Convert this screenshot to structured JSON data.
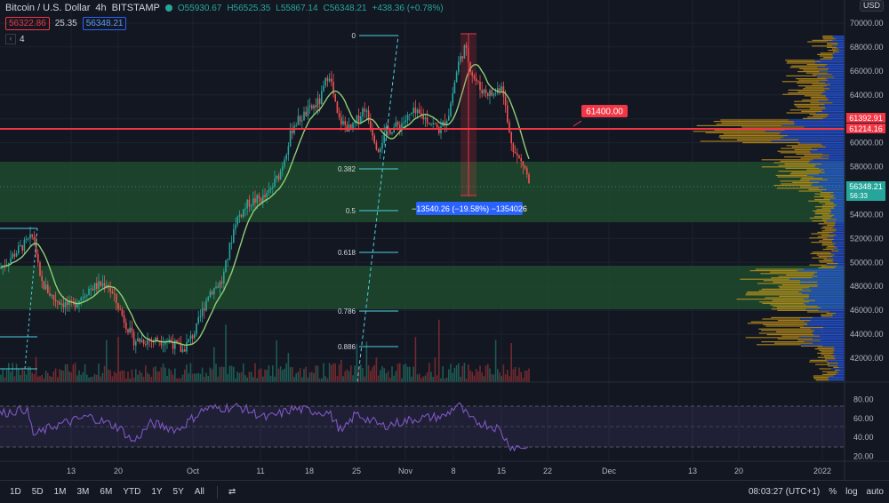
{
  "header": {
    "symbol": "Bitcoin / U.S. Dollar",
    "interval": "4h",
    "exchange": "BITSTAMP",
    "open": "O55930.67",
    "high": "H56525.35",
    "low": "L55867.14",
    "close": "C56348.21",
    "change": "+438.36 (+0.78%)"
  },
  "quote": {
    "bid": "56322.86",
    "spread": "25.35",
    "ask": "56348.21"
  },
  "indicators_collapsed": "4",
  "currency": "USD",
  "price_axis": {
    "labels": [
      "70000.00",
      "68000.00",
      "66000.00",
      "64000.00",
      "62000.00",
      "60000.00",
      "58000.00",
      "56000.00",
      "54000.00",
      "52000.00",
      "50000.00",
      "48000.00",
      "46000.00",
      "44000.00",
      "42000.00"
    ],
    "tag_61392": "61392.91",
    "tag_61214": "61214.16",
    "tag_last": "56348.21",
    "tag_countdown": "56:33"
  },
  "hline_label": "61400.00",
  "fib_levels": [
    "0",
    "0.382",
    "0.5",
    "0.618",
    "0.786",
    "0.886"
  ],
  "measure_label": "−13540.26 (−19.58%) −1354026",
  "rsi_axis": [
    "80.00",
    "60.00",
    "40.00",
    "20.00"
  ],
  "time_axis": [
    "13",
    "20",
    "Oct",
    "11",
    "18",
    "25",
    "Nov",
    "8",
    "15",
    "22",
    "Dec",
    "13",
    "20",
    "2022"
  ],
  "toolbar": {
    "timeframes": [
      "1D",
      "5D",
      "1M",
      "3M",
      "6M",
      "YTD",
      "1Y",
      "5Y",
      "All"
    ],
    "clock": "08:03:27 (UTC+1)",
    "percent": "%",
    "log": "log",
    "auto": "auto"
  },
  "colors": {
    "background": "#131722",
    "up": "#26a69a",
    "down": "#ef5350",
    "ma_line": "#8fce75",
    "rsi_line": "#7e57c2",
    "fib": "#4dd0e1",
    "zone": "#1f4a2e",
    "hline": "#f23645",
    "volume_profile_up": "#d4a017",
    "volume_profile_down": "#2962ff"
  }
}
